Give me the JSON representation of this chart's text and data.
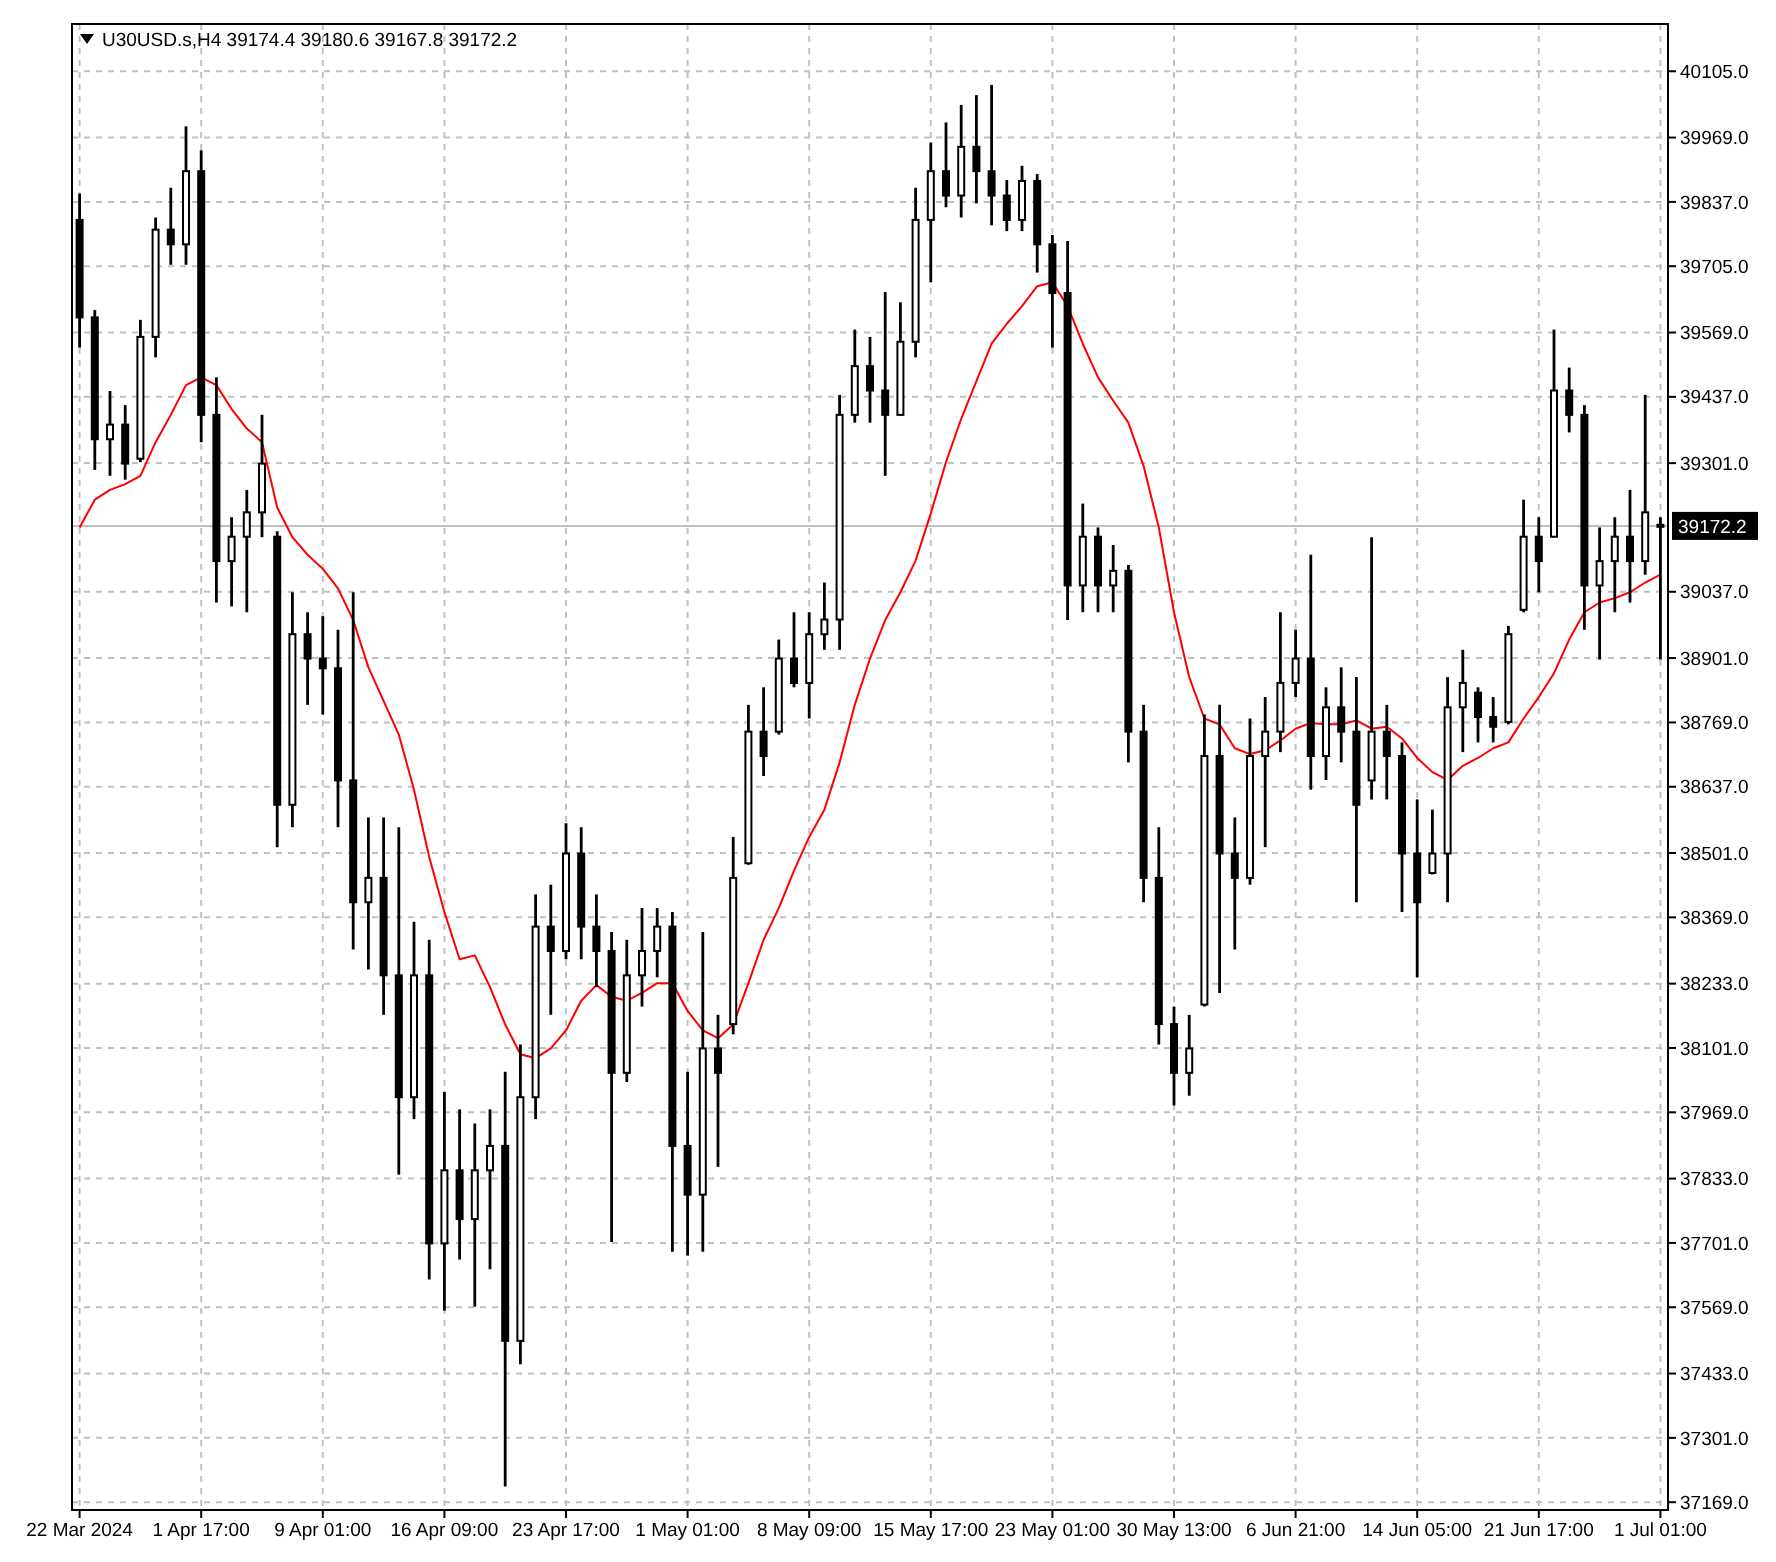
{
  "chart_data": {
    "type": "candlestick",
    "title": "U30USD.s,H4  39174.4 39180.6 39167.8 39172.2",
    "color": "#000000",
    "categories": [
      "22 Mar 2024",
      null,
      null,
      null,
      null,
      null,
      null,
      null,
      "1 Apr 17:00",
      null,
      null,
      null,
      null,
      null,
      null,
      null,
      "9 Apr 01:00",
      null,
      null,
      null,
      null,
      null,
      null,
      null,
      "16 Apr 09:00",
      null,
      null,
      null,
      null,
      null,
      null,
      null,
      "23 Apr 17:00",
      null,
      null,
      null,
      null,
      null,
      null,
      null,
      "1 May 01:00",
      null,
      null,
      null,
      null,
      null,
      null,
      null,
      "8 May 09:00",
      null,
      null,
      null,
      null,
      null,
      null,
      null,
      "15 May 17:00",
      null,
      null,
      null,
      null,
      null,
      null,
      null,
      "23 May 01:00",
      null,
      null,
      null,
      null,
      null,
      null,
      null,
      "30 May 13:00",
      null,
      null,
      null,
      null,
      null,
      null,
      null,
      "6 Jun 21:00",
      null,
      null,
      null,
      null,
      null,
      null,
      null,
      "14 Jun 05:00",
      null,
      null,
      null,
      null,
      null,
      null,
      null,
      "21 Jun 17:00",
      null,
      null,
      null,
      null,
      null,
      null,
      null,
      "1 Jul 01:00"
    ],
    "ohlc": [
      [
        39800,
        39854,
        39538,
        39600
      ],
      [
        39600,
        39615,
        39287,
        39350
      ],
      [
        39350,
        39449,
        39275,
        39380
      ],
      [
        39380,
        39420,
        39267,
        39300
      ],
      [
        39310,
        39595,
        39303,
        39560
      ],
      [
        39560,
        39805,
        39518,
        39780
      ],
      [
        39780,
        39866,
        39708,
        39750
      ],
      [
        39750,
        39992,
        39708,
        39900
      ],
      [
        39900,
        39943,
        39344,
        39400
      ],
      [
        39400,
        39477,
        39015,
        39100
      ],
      [
        39100,
        39190,
        39007,
        39150
      ],
      [
        39150,
        39246,
        38995,
        39200
      ],
      [
        39200,
        39400,
        39149,
        39300
      ],
      [
        39150,
        39161,
        38513,
        38600
      ],
      [
        38600,
        39036,
        38554,
        38950
      ],
      [
        38950,
        38995,
        38805,
        38900
      ],
      [
        38900,
        38987,
        38785,
        38880
      ],
      [
        38880,
        38959,
        38554,
        38650
      ],
      [
        38650,
        39036,
        38303,
        38400
      ],
      [
        38400,
        38574,
        38262,
        38450
      ],
      [
        38450,
        38574,
        38169,
        38250
      ],
      [
        38250,
        38554,
        37841,
        38000
      ],
      [
        38000,
        38360,
        37955,
        38250
      ],
      [
        38250,
        38323,
        37626,
        37700
      ],
      [
        37700,
        38011,
        37562,
        37850
      ],
      [
        37850,
        37975,
        37667,
        37750
      ],
      [
        37750,
        37946,
        37570,
        37850
      ],
      [
        37850,
        37975,
        37647,
        37900
      ],
      [
        37900,
        38052,
        37201,
        37500
      ],
      [
        37500,
        38108,
        37452,
        38000
      ],
      [
        38000,
        38416,
        37955,
        38350
      ],
      [
        38350,
        38436,
        38169,
        38300
      ],
      [
        38300,
        38562,
        38283,
        38500
      ],
      [
        38500,
        38554,
        38283,
        38350
      ],
      [
        38350,
        38416,
        38226,
        38300
      ],
      [
        38300,
        38339,
        37703,
        38050
      ],
      [
        38050,
        38323,
        38031,
        38250
      ],
      [
        38250,
        38388,
        38186,
        38300
      ],
      [
        38300,
        38388,
        38246,
        38350
      ],
      [
        38350,
        38380,
        37683,
        37900
      ],
      [
        37900,
        38052,
        37675,
        37800
      ],
      [
        37800,
        38339,
        37683,
        38100
      ],
      [
        38100,
        38169,
        37857,
        38050
      ],
      [
        38150,
        38534,
        38129,
        38450
      ],
      [
        38480,
        38805,
        38477,
        38750
      ],
      [
        38750,
        38841,
        38659,
        38700
      ],
      [
        38750,
        38939,
        38744,
        38900
      ],
      [
        38900,
        38995,
        38841,
        38850
      ],
      [
        38850,
        38995,
        38777,
        38950
      ],
      [
        38950,
        39056,
        38918,
        38980
      ],
      [
        38980,
        39441,
        38918,
        39400
      ],
      [
        39400,
        39575,
        39384,
        39500
      ],
      [
        39500,
        39560,
        39384,
        39450
      ],
      [
        39450,
        39652,
        39275,
        39400
      ],
      [
        39400,
        39631,
        39400,
        39550
      ],
      [
        39550,
        39866,
        39518,
        39800
      ],
      [
        39800,
        39959,
        39672,
        39900
      ],
      [
        39900,
        40000,
        39826,
        39850
      ],
      [
        39850,
        40036,
        39805,
        39950
      ],
      [
        39950,
        40056,
        39834,
        39900
      ],
      [
        39900,
        40077,
        39789,
        39850
      ],
      [
        39850,
        39882,
        39777,
        39800
      ],
      [
        39800,
        39911,
        39777,
        39880
      ],
      [
        39880,
        39894,
        39692,
        39750
      ],
      [
        39750,
        39769,
        39538,
        39650
      ],
      [
        39650,
        39757,
        38979,
        39050
      ],
      [
        39050,
        39218,
        38995,
        39150
      ],
      [
        39150,
        39169,
        38995,
        39050
      ],
      [
        39050,
        39133,
        38995,
        39080
      ],
      [
        39080,
        39092,
        38687,
        38750
      ],
      [
        38750,
        38805,
        38400,
        38450
      ],
      [
        38450,
        38554,
        38108,
        38150
      ],
      [
        38150,
        38186,
        37983,
        38050
      ],
      [
        38050,
        38169,
        38003,
        38100
      ],
      [
        38190,
        38785,
        38186,
        38700
      ],
      [
        38700,
        38805,
        38214,
        38500
      ],
      [
        38500,
        38574,
        38303,
        38450
      ],
      [
        38450,
        38777,
        38436,
        38700
      ],
      [
        38700,
        38821,
        38513,
        38750
      ],
      [
        38750,
        38995,
        38708,
        38850
      ],
      [
        38850,
        38959,
        38821,
        38900
      ],
      [
        38900,
        39113,
        38631,
        38700
      ],
      [
        38700,
        38841,
        38651,
        38800
      ],
      [
        38800,
        38882,
        38687,
        38750
      ],
      [
        38750,
        38862,
        38400,
        38600
      ],
      [
        38650,
        39149,
        38611,
        38750
      ],
      [
        38750,
        38805,
        38611,
        38700
      ],
      [
        38700,
        38728,
        38380,
        38500
      ],
      [
        38500,
        38611,
        38246,
        38400
      ],
      [
        38460,
        38590,
        38457,
        38500
      ],
      [
        38500,
        38862,
        38400,
        38800
      ],
      [
        38800,
        38918,
        38708,
        38850
      ],
      [
        38830,
        38841,
        38728,
        38780
      ],
      [
        38780,
        38821,
        38728,
        38760
      ],
      [
        38770,
        38967,
        38765,
        38950
      ],
      [
        39000,
        39226,
        38995,
        39150
      ],
      [
        39150,
        39190,
        39036,
        39100
      ],
      [
        39150,
        39575,
        39149,
        39450
      ],
      [
        39450,
        39497,
        39364,
        39400
      ],
      [
        39400,
        39420,
        38959,
        39050
      ],
      [
        39050,
        39169,
        38898,
        39100
      ],
      [
        39100,
        39190,
        38995,
        39150
      ],
      [
        39150,
        39246,
        39015,
        39100
      ],
      [
        39100,
        39441,
        39072,
        39200
      ],
      [
        39174.4,
        39190,
        38898,
        39172.2
      ]
    ],
    "series": [
      {
        "type": "line",
        "color": "#ff0000",
        "values": [
          39169,
          39226,
          39246,
          39258,
          39275,
          39344,
          39400,
          39461,
          39477,
          39461,
          39412,
          39372,
          39344,
          39210,
          39149,
          39113,
          39084,
          39044,
          38979,
          38882,
          38813,
          38744,
          38631,
          38493,
          38380,
          38283,
          38291,
          38226,
          38149,
          38088,
          38080,
          38100,
          38137,
          38198,
          38230,
          38206,
          38198,
          38214,
          38234,
          38234,
          38177,
          38137,
          38121,
          38149,
          38234,
          38323,
          38388,
          38465,
          38534,
          38590,
          38687,
          38805,
          38900,
          38979,
          39036,
          39101,
          39198,
          39303,
          39392,
          39469,
          39546,
          39587,
          39623,
          39664,
          39672,
          39623,
          39546,
          39477,
          39429,
          39384,
          39295,
          39169,
          38995,
          38862,
          38777,
          38765,
          38716,
          38704,
          38712,
          38732,
          38756,
          38768,
          38765,
          38765,
          38773,
          38756,
          38760,
          38736,
          38696,
          38667,
          38651,
          38680,
          38696,
          38716,
          38728,
          38777,
          38821,
          38870,
          38939,
          38995,
          39015,
          39024,
          39036,
          39056,
          39072
        ]
      }
    ],
    "ylim": [
      37153,
      40202
    ],
    "yticks": [
      {
        "value": 40105,
        "label": "40105.0"
      },
      {
        "value": 39969,
        "label": "39969.0"
      },
      {
        "value": 39837,
        "label": "39837.0"
      },
      {
        "value": 39705,
        "label": "39705.0"
      },
      {
        "value": 39569,
        "label": "39569.0"
      },
      {
        "value": 39437,
        "label": "39437.0"
      },
      {
        "value": 39301,
        "label": "39301.0"
      },
      {
        "value": 39037,
        "label": "39037.0"
      },
      {
        "value": 38901,
        "label": "38901.0"
      },
      {
        "value": 38769,
        "label": "38769.0"
      },
      {
        "value": 38637,
        "label": "38637.0"
      },
      {
        "value": 38501,
        "label": "38501.0"
      },
      {
        "value": 38369,
        "label": "38369.0"
      },
      {
        "value": 38233,
        "label": "38233.0"
      },
      {
        "value": 38101,
        "label": "38101.0"
      },
      {
        "value": 37969,
        "label": "37969.0"
      },
      {
        "value": 37833,
        "label": "37833.0"
      },
      {
        "value": 37701,
        "label": "37701.0"
      },
      {
        "value": 37569,
        "label": "37569.0"
      },
      {
        "value": 37433,
        "label": "37433.0"
      },
      {
        "value": 37301,
        "label": "37301.0"
      },
      {
        "value": 37169,
        "label": "37169.0"
      }
    ],
    "ref_lines": [
      {
        "axis": "y",
        "value": 39172.2,
        "label": "39172.2",
        "color": "#c0c0c0"
      }
    ],
    "grid": true
  }
}
